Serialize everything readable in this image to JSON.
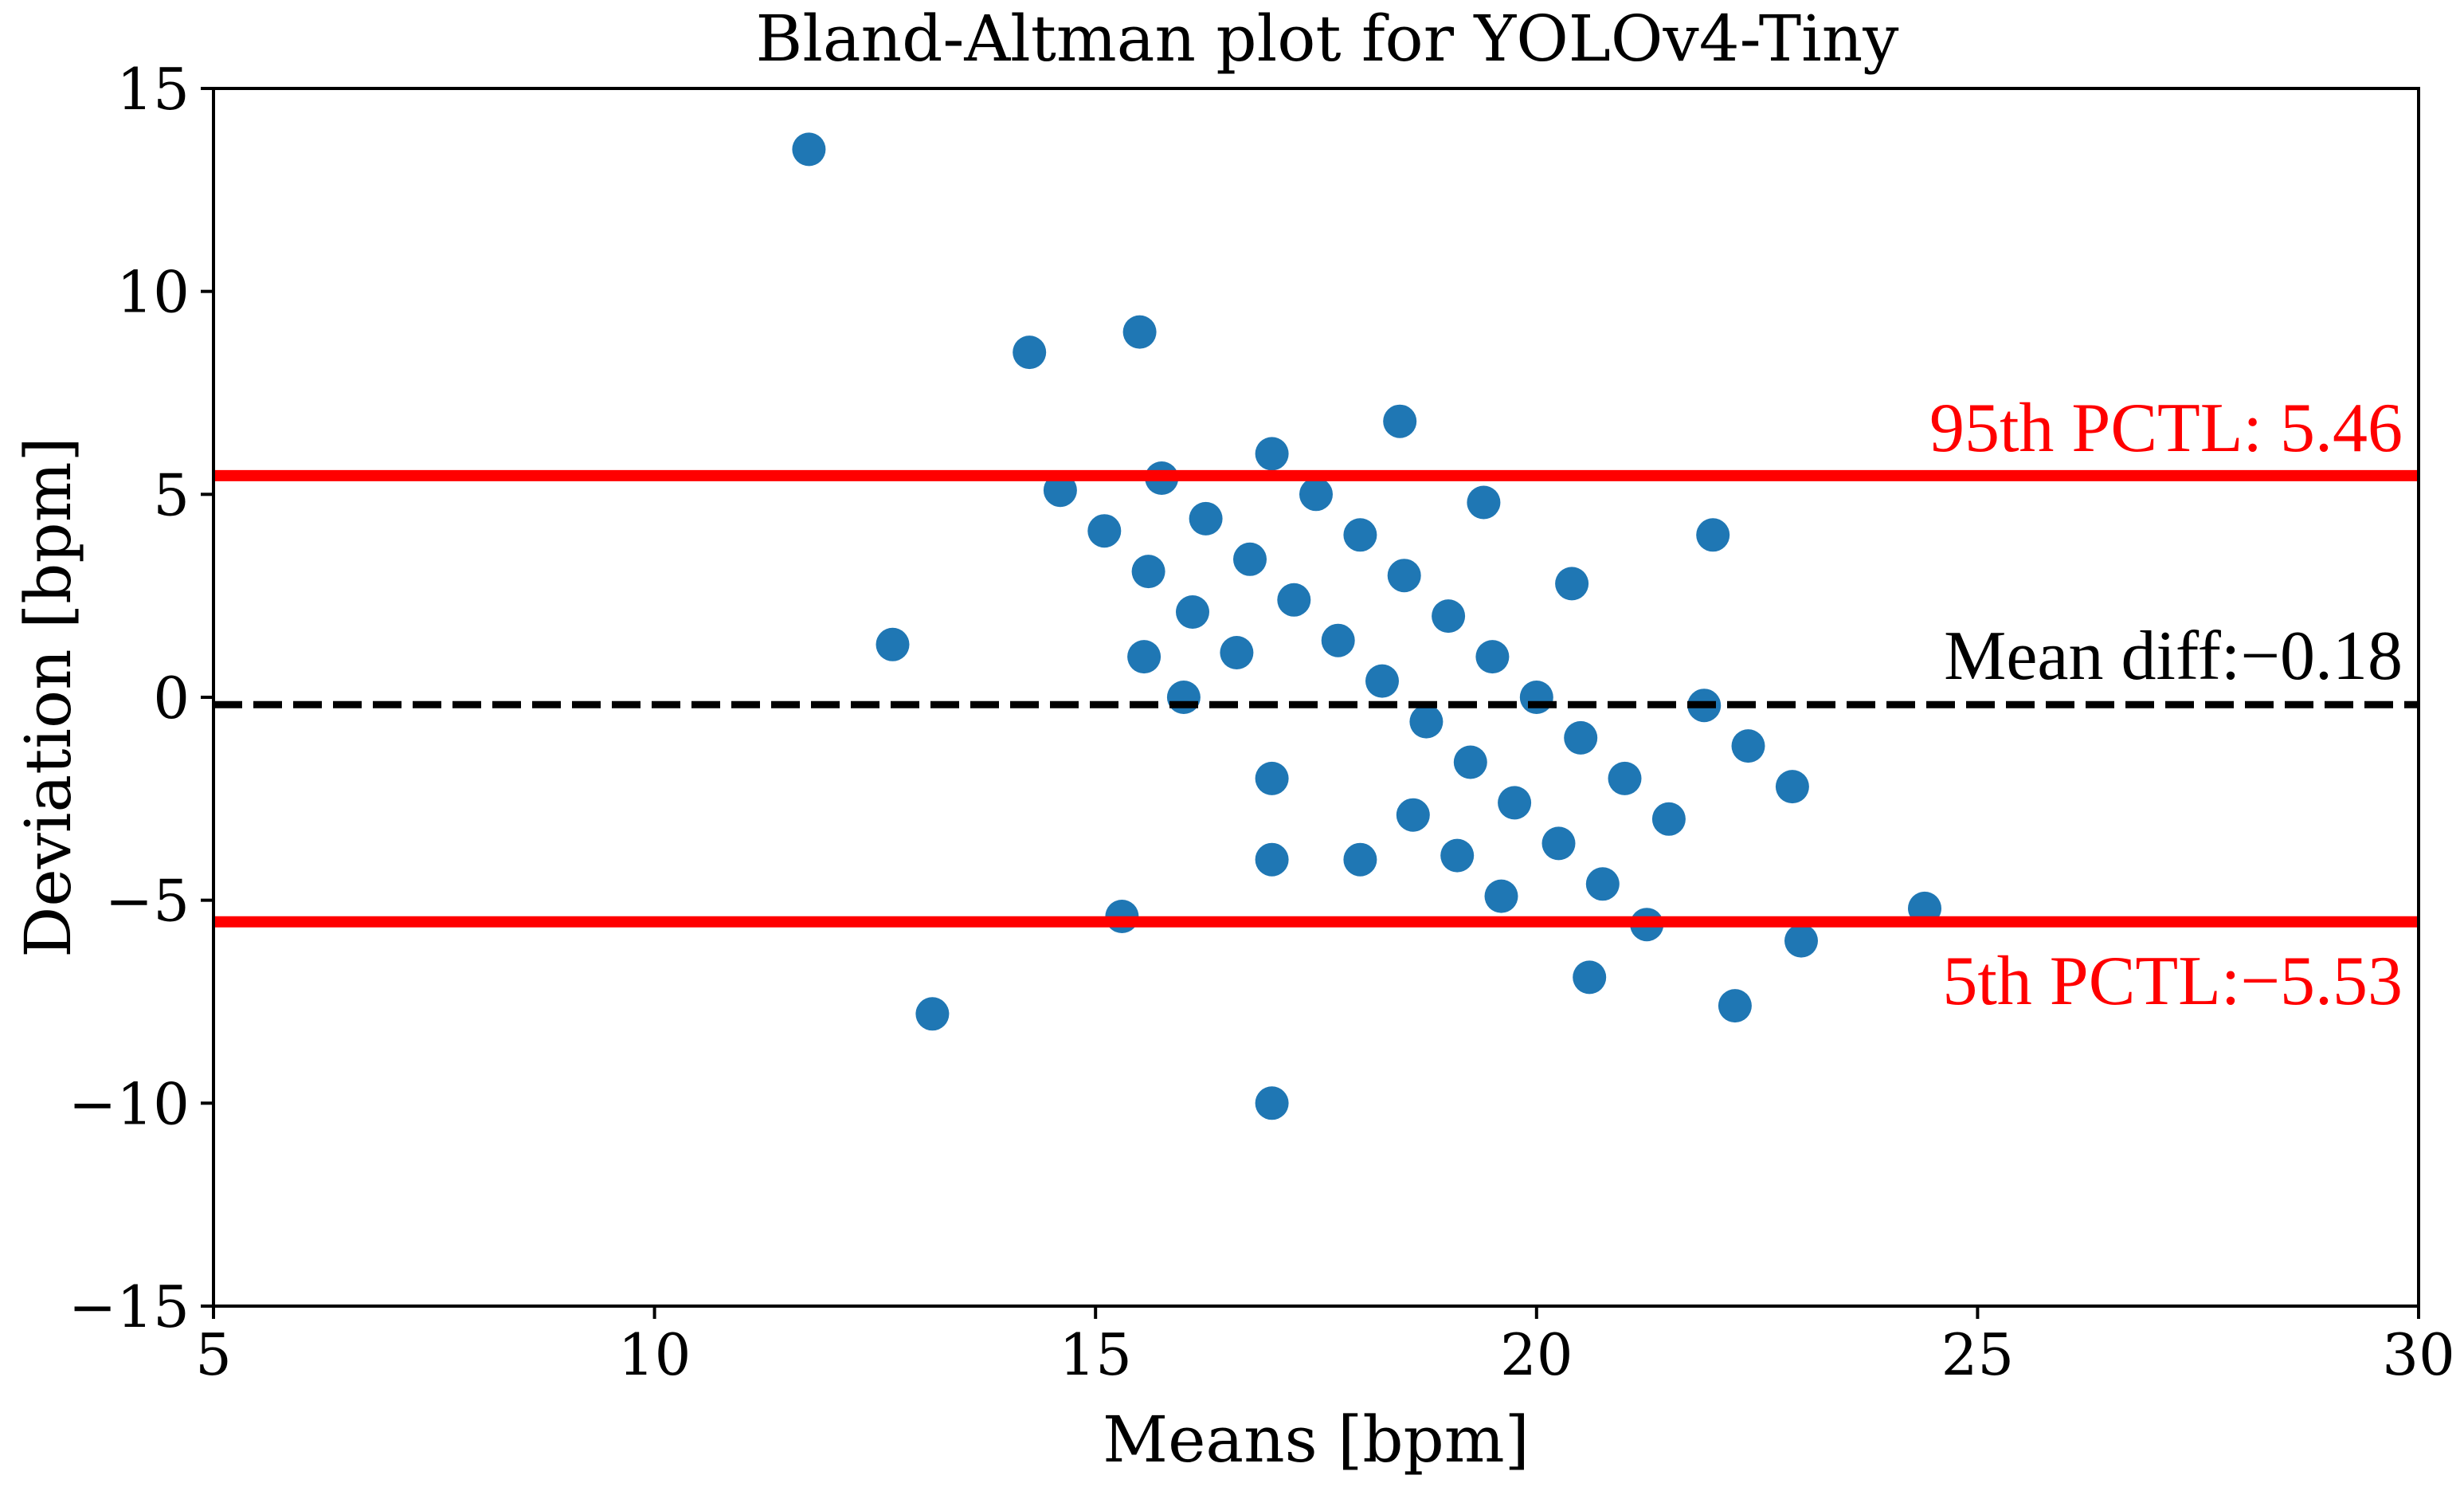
{
  "chart_data": {
    "type": "scatter",
    "title": "Bland-Altman plot for YOLOv4-Tiny",
    "xlabel": "Means [bpm]",
    "ylabel": "Deviation [bpm]",
    "xlim": [
      5,
      30
    ],
    "ylim": [
      -15,
      15
    ],
    "xticks": [
      5,
      10,
      15,
      20,
      25,
      30
    ],
    "yticks": [
      -15,
      -10,
      -5,
      0,
      5,
      10,
      15
    ],
    "xtick_labels": [
      "5",
      "10",
      "15",
      "20",
      "25",
      "30"
    ],
    "ytick_labels": [
      "−15",
      "−10",
      "−5",
      "0",
      "5",
      "10",
      "15"
    ],
    "grid": false,
    "point_color": "#1f77b4",
    "reference_lines": [
      {
        "name": "upper",
        "value": 5.46,
        "style": "solid",
        "color": "#ff0000",
        "label": "95th PCTL:  5.46"
      },
      {
        "name": "mean",
        "value": -0.18,
        "style": "dashed",
        "color": "#000000",
        "label": "Mean diff:−0.18"
      },
      {
        "name": "lower",
        "value": -5.53,
        "style": "solid",
        "color": "#ff0000",
        "label": "5th PCTL:−5.53"
      }
    ],
    "points": [
      {
        "x": 11.75,
        "y": 13.5
      },
      {
        "x": 12.7,
        "y": 1.3
      },
      {
        "x": 13.15,
        "y": -7.8
      },
      {
        "x": 14.25,
        "y": 8.5
      },
      {
        "x": 14.6,
        "y": 5.1
      },
      {
        "x": 15.1,
        "y": 4.1
      },
      {
        "x": 15.3,
        "y": -5.4
      },
      {
        "x": 15.5,
        "y": 9.0
      },
      {
        "x": 15.55,
        "y": 1.0
      },
      {
        "x": 15.6,
        "y": 3.1
      },
      {
        "x": 15.75,
        "y": 5.4
      },
      {
        "x": 16.0,
        "y": 0.0
      },
      {
        "x": 16.1,
        "y": 2.1
      },
      {
        "x": 16.25,
        "y": 4.4
      },
      {
        "x": 16.6,
        "y": 1.1
      },
      {
        "x": 16.75,
        "y": 3.4
      },
      {
        "x": 17.0,
        "y": 6.0
      },
      {
        "x": 17.0,
        "y": -2.0
      },
      {
        "x": 17.0,
        "y": -4.0
      },
      {
        "x": 17.0,
        "y": -10.0
      },
      {
        "x": 17.25,
        "y": 2.4
      },
      {
        "x": 17.5,
        "y": 5.0
      },
      {
        "x": 17.75,
        "y": 1.4
      },
      {
        "x": 18.0,
        "y": 4.0
      },
      {
        "x": 18.0,
        "y": -4.0
      },
      {
        "x": 18.25,
        "y": 0.4
      },
      {
        "x": 18.45,
        "y": 6.8
      },
      {
        "x": 18.5,
        "y": 3.0
      },
      {
        "x": 18.6,
        "y": -2.9
      },
      {
        "x": 18.75,
        "y": -0.6
      },
      {
        "x": 19.0,
        "y": 2.0
      },
      {
        "x": 19.1,
        "y": -3.9
      },
      {
        "x": 19.25,
        "y": -1.6
      },
      {
        "x": 19.4,
        "y": 4.8
      },
      {
        "x": 19.5,
        "y": 1.0
      },
      {
        "x": 19.6,
        "y": -4.9
      },
      {
        "x": 19.75,
        "y": -2.6
      },
      {
        "x": 20.0,
        "y": 0.0
      },
      {
        "x": 20.25,
        "y": -3.6
      },
      {
        "x": 20.4,
        "y": 2.8
      },
      {
        "x": 20.5,
        "y": -1.0
      },
      {
        "x": 20.6,
        "y": -6.9
      },
      {
        "x": 20.75,
        "y": -4.6
      },
      {
        "x": 21.0,
        "y": -2.0
      },
      {
        "x": 21.25,
        "y": -5.6
      },
      {
        "x": 21.5,
        "y": -3.0
      },
      {
        "x": 21.9,
        "y": -0.2
      },
      {
        "x": 22.0,
        "y": 4.0
      },
      {
        "x": 22.25,
        "y": -7.6
      },
      {
        "x": 22.4,
        "y": -1.2
      },
      {
        "x": 22.9,
        "y": -2.2
      },
      {
        "x": 23.0,
        "y": -6.0
      },
      {
        "x": 24.4,
        "y": -5.2
      }
    ]
  }
}
